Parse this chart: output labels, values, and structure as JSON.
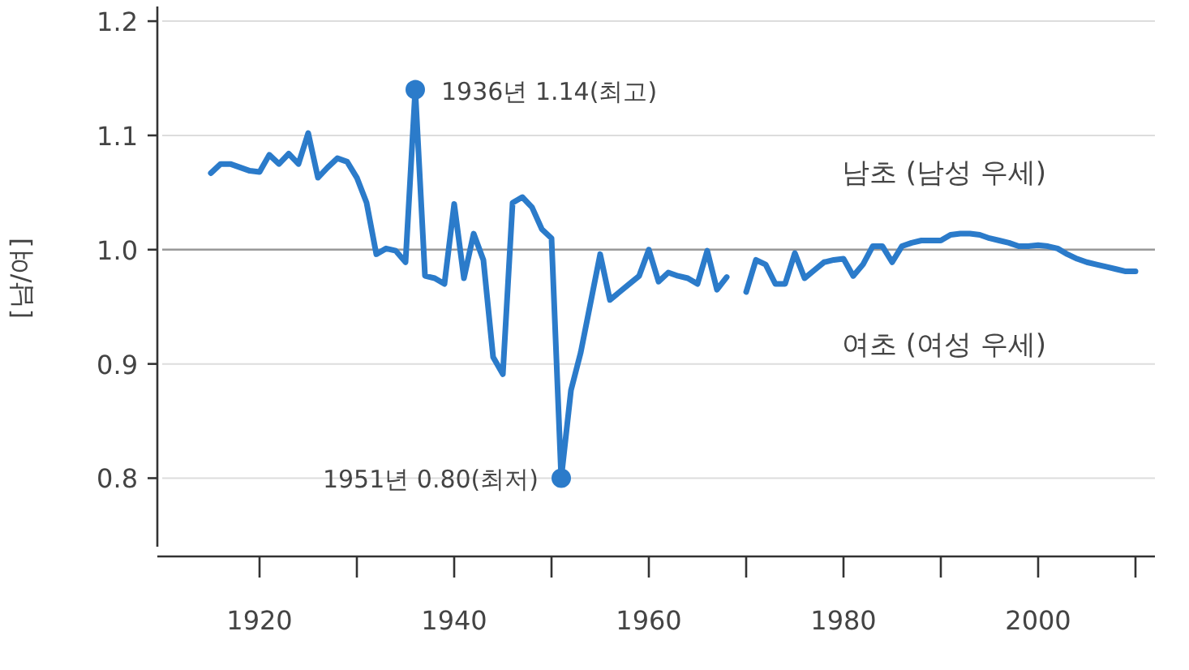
{
  "chart_data": {
    "type": "line",
    "ylabel": "[남/여]",
    "x": [
      1915,
      1916,
      1917,
      1918,
      1919,
      1920,
      1921,
      1922,
      1923,
      1924,
      1925,
      1926,
      1927,
      1928,
      1929,
      1930,
      1931,
      1932,
      1933,
      1934,
      1935,
      1936,
      1937,
      1938,
      1939,
      1940,
      1941,
      1942,
      1943,
      1944,
      1945,
      1946,
      1947,
      1948,
      1949,
      1950,
      1951,
      1952,
      1953,
      1954,
      1955,
      1956,
      1957,
      1958,
      1959,
      1960,
      1961,
      1962,
      1963,
      1964,
      1965,
      1966,
      1967,
      1968,
      1969,
      1970,
      1971,
      1972,
      1973,
      1974,
      1975,
      1976,
      1977,
      1978,
      1979,
      1980,
      1981,
      1982,
      1983,
      1984,
      1985,
      1986,
      1987,
      1988,
      1989,
      1990,
      1991,
      1992,
      1993,
      1994,
      1995,
      1996,
      1997,
      1998,
      1999,
      2000,
      2001,
      2002,
      2003,
      2004,
      2005,
      2006,
      2007,
      2008,
      2009,
      2010
    ],
    "series": [
      {
        "color": "#2b7bca",
        "values": [
          1.067,
          1.075,
          1.075,
          1.072,
          1.069,
          1.068,
          1.083,
          1.075,
          1.084,
          1.075,
          1.102,
          1.063,
          1.072,
          1.08,
          1.077,
          1.063,
          1.041,
          0.996,
          1.001,
          0.999,
          0.989,
          1.14,
          0.977,
          0.975,
          0.97,
          1.04,
          0.975,
          1.014,
          0.991,
          0.906,
          0.891,
          1.041,
          1.046,
          1.037,
          1.018,
          1.01,
          0.8,
          0.877,
          0.91,
          0.953,
          0.996,
          0.956,
          0.963,
          0.97,
          0.977,
          1.0,
          0.972,
          0.98,
          0.977,
          0.975,
          0.97,
          0.999,
          0.965,
          0.976,
          null,
          0.963,
          0.991,
          0.987,
          0.97,
          0.97,
          0.997,
          0.975,
          0.982,
          0.989,
          0.991,
          0.992,
          0.977,
          0.987,
          1.003,
          1.003,
          0.989,
          1.003,
          1.006,
          1.008,
          1.008,
          1.008,
          1.013,
          1.014,
          1.014,
          1.013,
          1.01,
          1.008,
          1.006,
          1.003,
          1.003,
          1.004,
          1.003,
          1.001,
          0.996,
          0.992,
          0.989,
          0.987,
          0.985,
          0.983,
          0.981,
          0.981
        ]
      },
      {
        "type": "scatter",
        "marker": "circle",
        "color": "#2b7bca",
        "x": [
          1936,
          1951
        ],
        "values": [
          1.14,
          0.8
        ]
      }
    ],
    "xlim": [
      1909.5,
      2012
    ],
    "ylim": [
      0.74,
      1.21
    ],
    "xticks": [
      1920,
      {
        "value": 1930,
        "label": null
      },
      1940,
      {
        "value": 1950,
        "label": null
      },
      1960,
      {
        "value": 1970,
        "label": null
      },
      1980,
      {
        "value": 1990,
        "label": null
      },
      2000,
      {
        "value": 2010,
        "label": null
      }
    ],
    "yticks": [
      {
        "value": 0.8,
        "label": "0.8"
      },
      {
        "value": 0.9,
        "label": "0.9"
      },
      {
        "value": 1,
        "label": "1.0"
      },
      {
        "value": 1.1,
        "label": "1.1"
      },
      {
        "value": 1.2,
        "label": "1.2"
      }
    ],
    "grid": "y",
    "line_style": "solid",
    "marker": "none",
    "ref_lines": [
      {
        "axis": "y",
        "value": 1,
        "color": "#999999"
      }
    ],
    "annotations": [
      {
        "text": "1936년 1.14(최고)",
        "x": 1936,
        "y": 1.14
      },
      {
        "text": "1951년 0.80(최저)",
        "x": 1951,
        "y": 0.8
      },
      "남초 (남성 우세)",
      "여초 (여성 우세)"
    ]
  }
}
